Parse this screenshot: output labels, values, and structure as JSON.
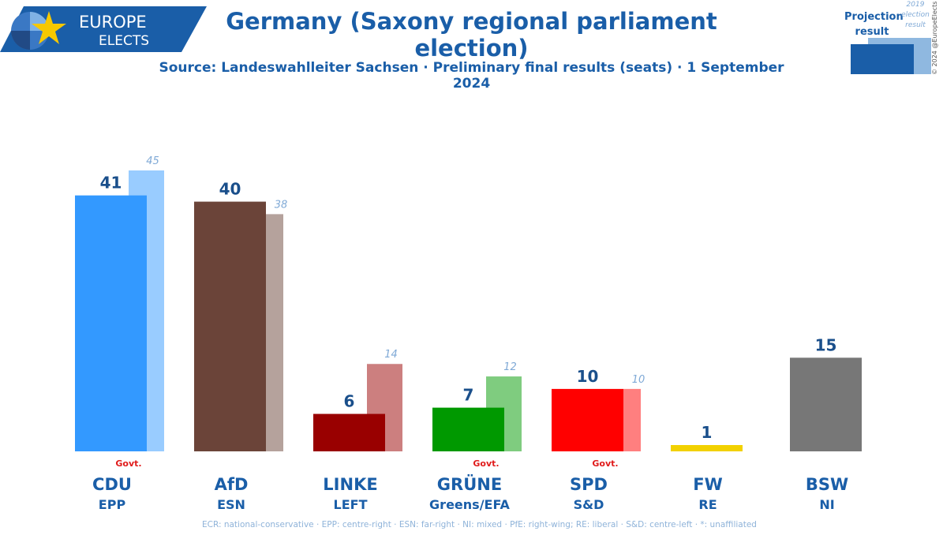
{
  "logo": {
    "line1": "EUROPE",
    "line2": "ELECTS"
  },
  "header": {
    "title": "Germany (Saxony regional parliament election)",
    "subtitle": "Source: Landeswahlleiter Sachsen · Preliminary final results (seats) · 1 September 2024"
  },
  "legend": {
    "projection_line1": "Projection",
    "projection_line2": "result",
    "previous_line1": "2019",
    "previous_line2": "election",
    "previous_line3": "result"
  },
  "copyright": "© 2024 @EuropeElects",
  "footnote": "ECR: national-conservative · EPP: centre-right · ESN: far-right · NI: mixed · PfE: right-wing; RE: liberal · S&D: centre-left · *: unaffiliated",
  "colors": {
    "brand": "#1a5ea8",
    "label_value": "#1a4f8b",
    "label_previous": "#7fa9d6",
    "govt": "#e01b1b"
  },
  "chart_data": {
    "type": "bar",
    "categories": [
      "CDU",
      "AfD",
      "LINKE",
      "GRÜNE",
      "SPD",
      "FW",
      "BSW"
    ],
    "groups": [
      "EPP",
      "ESN",
      "LEFT",
      "Greens/EFA",
      "S&D",
      "RE",
      "NI"
    ],
    "govt_label": "Govt.",
    "govt": [
      true,
      false,
      false,
      true,
      true,
      false,
      false
    ],
    "series": [
      {
        "name": "result",
        "values": [
          41,
          40,
          6,
          7,
          10,
          1,
          15
        ]
      },
      {
        "name": "2019 election result",
        "values": [
          45,
          38,
          14,
          12,
          10,
          null,
          null
        ]
      }
    ],
    "bar_colors": [
      "#3399ff",
      "#6b4439",
      "#990000",
      "#009900",
      "#ff0000",
      "#f2d100",
      "#777777"
    ],
    "prev_colors": [
      "#99ccff",
      "#b5a29c",
      "#cc7f7f",
      "#7fcc7f",
      "#ff7f7f",
      null,
      null
    ],
    "ylim": [
      0,
      45
    ]
  }
}
